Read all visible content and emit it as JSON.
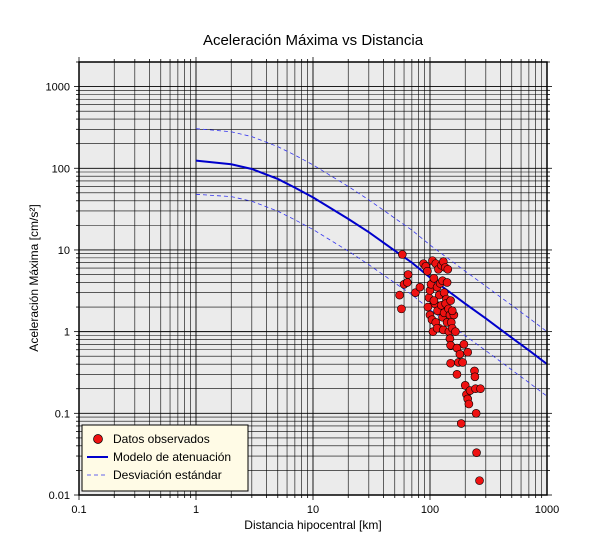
{
  "chart_data": {
    "type": "scatter",
    "title": "Aceleración Máxima vs Distancia",
    "xlabel": "Distancia hipocentral [km]",
    "ylabel": "Aceleración Máxima [cm/s²]",
    "xscale": "log",
    "yscale": "log",
    "xlim": [
      0.1,
      1000
    ],
    "ylim": [
      0.01,
      2000
    ],
    "x_ticks": [
      "0.1",
      "1",
      "10",
      "100",
      "1000"
    ],
    "y_ticks": [
      "0.01",
      "0.1",
      "1",
      "10",
      "100",
      "1000"
    ],
    "grid": true,
    "legend_position": "bottom-left",
    "colors": {
      "background": "#ebebeb",
      "grid": "#000000",
      "points": "#ee1111",
      "model": "#0000cc",
      "deviation": "#3333ee",
      "legend_bg": "#fffbe6"
    },
    "series": [
      {
        "name": "Datos observados",
        "kind": "points",
        "points": [
          [
            58,
            8.8
          ],
          [
            55,
            2.8
          ],
          [
            57,
            1.9
          ],
          [
            60,
            3.8
          ],
          [
            64,
            4.0
          ],
          [
            65,
            5.0
          ],
          [
            75,
            3.0
          ],
          [
            82,
            3.5
          ],
          [
            88,
            6.8
          ],
          [
            92,
            6.3
          ],
          [
            95,
            5.5
          ],
          [
            98,
            2.6
          ],
          [
            100,
            3.2
          ],
          [
            102,
            3.8
          ],
          [
            105,
            7.4
          ],
          [
            108,
            4.5
          ],
          [
            110,
            2.2
          ],
          [
            112,
            6.8
          ],
          [
            115,
            3.5
          ],
          [
            118,
            5.8
          ],
          [
            120,
            2.8
          ],
          [
            122,
            3.9
          ],
          [
            125,
            6.5
          ],
          [
            128,
            4.2
          ],
          [
            130,
            7.2
          ],
          [
            132,
            3.0
          ],
          [
            135,
            6.1
          ],
          [
            138,
            2.5
          ],
          [
            140,
            4.0
          ],
          [
            142,
            5.8
          ],
          [
            96,
            2.0
          ],
          [
            100,
            1.6
          ],
          [
            104,
            1.4
          ],
          [
            108,
            2.4
          ],
          [
            112,
            1.3
          ],
          [
            116,
            1.8
          ],
          [
            120,
            1.1
          ],
          [
            125,
            2.1
          ],
          [
            128,
            1.5
          ],
          [
            132,
            1.7
          ],
          [
            136,
            2.2
          ],
          [
            140,
            1.3
          ],
          [
            144,
            1.9
          ],
          [
            148,
            1.6
          ],
          [
            152,
            1.3
          ],
          [
            106,
            1.0
          ],
          [
            115,
            1.1
          ],
          [
            130,
            1.05
          ],
          [
            145,
            1.0
          ],
          [
            155,
            1.1
          ],
          [
            160,
            1.6
          ],
          [
            150,
            2.4
          ],
          [
            155,
            1.8
          ],
          [
            165,
            1.0
          ],
          [
            148,
            0.82
          ],
          [
            150,
            0.68
          ],
          [
            170,
            0.63
          ],
          [
            175,
            0.42
          ],
          [
            180,
            0.53
          ],
          [
            195,
            0.7
          ],
          [
            210,
            0.56
          ],
          [
            150,
            0.41
          ],
          [
            170,
            0.3
          ],
          [
            190,
            0.42
          ],
          [
            200,
            0.22
          ],
          [
            205,
            0.17
          ],
          [
            210,
            0.15
          ],
          [
            215,
            0.13
          ],
          [
            220,
            0.19
          ],
          [
            240,
            0.33
          ],
          [
            242,
            0.28
          ],
          [
            245,
            0.2
          ],
          [
            248,
            0.1
          ],
          [
            270,
            0.2
          ],
          [
            185,
            0.075
          ],
          [
            250,
            0.033
          ],
          [
            265,
            0.015
          ]
        ]
      },
      {
        "name": "Modelo de atenuación",
        "kind": "line",
        "points": [
          [
            1,
            124
          ],
          [
            2,
            112
          ],
          [
            3,
            98
          ],
          [
            5,
            74
          ],
          [
            7,
            58
          ],
          [
            10,
            44
          ],
          [
            20,
            24
          ],
          [
            30,
            16.5
          ],
          [
            50,
            9.8
          ],
          [
            70,
            7.0
          ],
          [
            100,
            4.6
          ],
          [
            200,
            2.2
          ],
          [
            300,
            1.45
          ],
          [
            500,
            0.84
          ],
          [
            700,
            0.59
          ],
          [
            1000,
            0.4
          ]
        ]
      },
      {
        "name": "Desviación estándar",
        "kind": "dashed-band",
        "upper": [
          [
            1,
            305
          ],
          [
            2,
            280
          ],
          [
            3,
            244
          ],
          [
            5,
            184
          ],
          [
            7,
            145
          ],
          [
            10,
            110
          ],
          [
            20,
            60
          ],
          [
            30,
            41
          ],
          [
            50,
            24.5
          ],
          [
            70,
            17.5
          ],
          [
            100,
            11.5
          ],
          [
            200,
            5.5
          ],
          [
            300,
            3.6
          ],
          [
            500,
            2.1
          ],
          [
            700,
            1.47
          ],
          [
            1000,
            1.0
          ]
        ],
        "lower": [
          [
            1,
            48
          ],
          [
            2,
            45
          ],
          [
            3,
            39.5
          ],
          [
            5,
            29.8
          ],
          [
            7,
            23.4
          ],
          [
            10,
            17.8
          ],
          [
            20,
            9.7
          ],
          [
            30,
            6.6
          ],
          [
            50,
            3.95
          ],
          [
            70,
            2.83
          ],
          [
            100,
            1.86
          ],
          [
            200,
            0.89
          ],
          [
            300,
            0.585
          ],
          [
            500,
            0.34
          ],
          [
            700,
            0.238
          ],
          [
            1000,
            0.162
          ]
        ]
      }
    ]
  }
}
